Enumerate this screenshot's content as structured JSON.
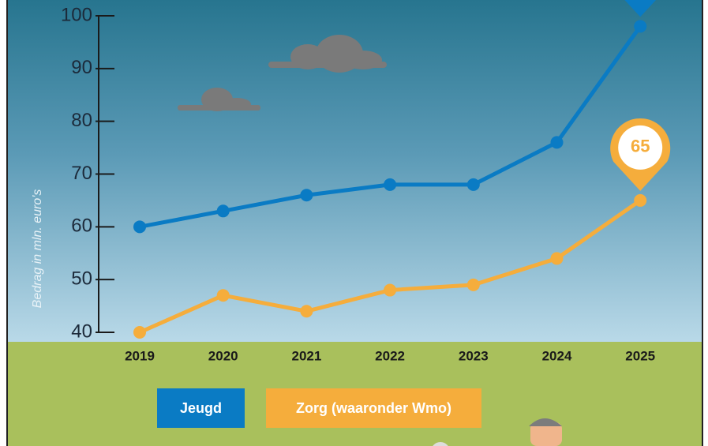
{
  "chart_data": {
    "type": "line",
    "y_label": "Bedrag in mln. euro's",
    "categories": [
      "2019",
      "2020",
      "2021",
      "2022",
      "2023",
      "2024",
      "2025"
    ],
    "series": [
      {
        "name": "Jeugd",
        "color": "#0a7bc4",
        "values": [
          60,
          63,
          66,
          68,
          68,
          76,
          98
        ]
      },
      {
        "name": "Zorg (waaronder Wmo)",
        "color": "#f5ad3c",
        "values": [
          40,
          47,
          44,
          48,
          49,
          54,
          65
        ]
      }
    ],
    "ylim": [
      40,
      100
    ],
    "yticks": [
      40,
      50,
      60,
      70,
      80,
      90,
      100
    ]
  }
}
